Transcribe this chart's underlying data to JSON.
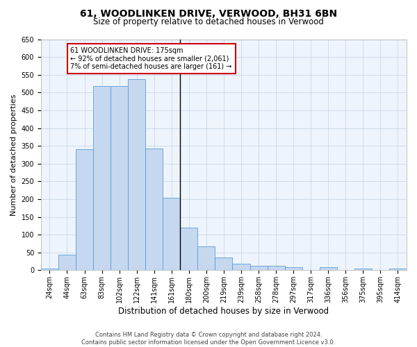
{
  "title": "61, WOODLINKEN DRIVE, VERWOOD, BH31 6BN",
  "subtitle": "Size of property relative to detached houses in Verwood",
  "xlabel": "Distribution of detached houses by size in Verwood",
  "ylabel": "Number of detached properties",
  "bin_labels": [
    "24sqm",
    "44sqm",
    "63sqm",
    "83sqm",
    "102sqm",
    "122sqm",
    "141sqm",
    "161sqm",
    "180sqm",
    "200sqm",
    "219sqm",
    "239sqm",
    "258sqm",
    "278sqm",
    "297sqm",
    "317sqm",
    "336sqm",
    "356sqm",
    "375sqm",
    "395sqm",
    "414sqm"
  ],
  "bar_heights": [
    5,
    43,
    340,
    519,
    519,
    537,
    343,
    204,
    119,
    67,
    36,
    18,
    13,
    13,
    8,
    0,
    8,
    0,
    5,
    0,
    5
  ],
  "bar_color": "#c5d8f0",
  "bar_edge_color": "#5b9bd5",
  "property_line_x": 7.5,
  "annotation_text": "61 WOODLINKEN DRIVE: 175sqm\n← 92% of detached houses are smaller (2,061)\n7% of semi-detached houses are larger (161) →",
  "annotation_box_color": "#ffffff",
  "annotation_edge_color": "#cc0000",
  "vline_color": "#000000",
  "grid_color": "#c8d8e8",
  "background_color": "#eef4fb",
  "footer_line1": "Contains HM Land Registry data © Crown copyright and database right 2024.",
  "footer_line2": "Contains public sector information licensed under the Open Government Licence v3.0.",
  "ylim": [
    0,
    650
  ],
  "yticks": [
    0,
    50,
    100,
    150,
    200,
    250,
    300,
    350,
    400,
    450,
    500,
    550,
    600,
    650
  ],
  "title_fontsize": 10,
  "subtitle_fontsize": 8.5,
  "ylabel_fontsize": 8,
  "xlabel_fontsize": 8.5,
  "tick_fontsize": 7,
  "annotation_fontsize": 7,
  "footer_fontsize": 6
}
